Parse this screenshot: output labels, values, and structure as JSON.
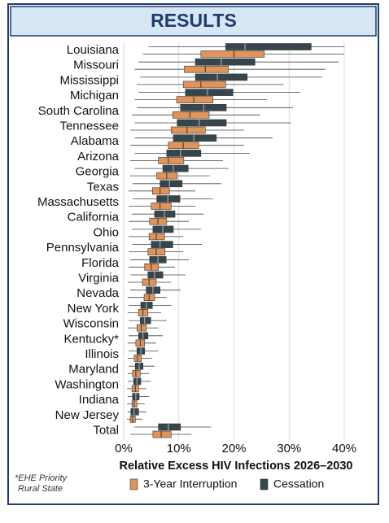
{
  "chart_data": {
    "type": "boxplot",
    "title": "RESULTS",
    "xlabel": "Relative Excess HIV Infections 2026–2030",
    "footnote": [
      "*EHE Priority",
      "Rural State"
    ],
    "categories": [
      "Louisiana",
      "Missouri",
      "Mississippi",
      "Michigan",
      "South Carolina",
      "Tennessee",
      "Alabama",
      "Arizona",
      "Georgia",
      "Texas",
      "Massachusetts",
      "California",
      "Ohio",
      "Pennsylvania",
      "Florida",
      "Virginia",
      "Nevada",
      "New York",
      "Wisconsin",
      "Kentucky*",
      "Illinois",
      "Maryland",
      "Washington",
      "Indiana",
      "New Jersey",
      "Total"
    ],
    "series": [
      {
        "name": "3-Year Interruption",
        "color": "#e0945a",
        "values": [
          [
            3.5,
            14,
            20,
            25.5,
            40
          ],
          [
            2,
            11,
            14.8,
            19,
            36.6
          ],
          [
            2.4,
            10.8,
            14,
            18.5,
            29
          ],
          [
            2,
            9.6,
            12.7,
            16.2,
            26
          ],
          [
            1.5,
            8.9,
            12,
            15.5,
            24.8
          ],
          [
            1.2,
            8.6,
            11.5,
            14.8,
            21.8
          ],
          [
            1.2,
            8.1,
            10.8,
            13.6,
            21.8
          ],
          [
            1.2,
            6.3,
            8.1,
            10.9,
            18
          ],
          [
            1.2,
            6,
            7.8,
            9.7,
            15.6
          ],
          [
            0.9,
            5.2,
            6.6,
            8.3,
            13
          ],
          [
            0.9,
            5,
            6.6,
            8.6,
            13
          ],
          [
            0.9,
            4.7,
            6.2,
            7.8,
            11.8
          ],
          [
            0.9,
            4.6,
            5.9,
            7.4,
            10.8
          ],
          [
            0.9,
            4.4,
            5.9,
            7.5,
            10.8
          ],
          [
            0.9,
            3.8,
            5,
            6.3,
            9.3
          ],
          [
            0.7,
            3.4,
            4.6,
            5.9,
            8.6
          ],
          [
            0.7,
            3.7,
            4.6,
            5.6,
            7.8
          ],
          [
            0.7,
            2.7,
            3.5,
            4.4,
            6.8
          ],
          [
            0.7,
            2.4,
            3.2,
            4.1,
            6.3
          ],
          [
            0.7,
            2.2,
            3,
            3.8,
            5.9
          ],
          [
            0.7,
            1.9,
            2.5,
            3.2,
            5.2
          ],
          [
            0.7,
            1.6,
            2.2,
            3,
            4.6
          ],
          [
            0.6,
            1.5,
            2.1,
            2.7,
            4.1
          ],
          [
            0.6,
            1.5,
            1.9,
            2.4,
            3.8
          ],
          [
            0.6,
            1.2,
            1.6,
            2.1,
            3.4
          ],
          [
            1.2,
            5.3,
            6.8,
            8.6,
            12.3
          ]
        ]
      },
      {
        "name": "Cessation",
        "color": "#37464d",
        "values": [
          [
            4.5,
            18.5,
            22,
            34,
            40
          ],
          [
            2.7,
            13,
            17.7,
            23.8,
            39
          ],
          [
            3,
            13,
            17,
            22.4,
            36
          ],
          [
            2.7,
            11.2,
            15.2,
            19.8,
            32
          ],
          [
            2.4,
            10.3,
            14.5,
            18.6,
            30.7
          ],
          [
            2,
            9.7,
            13.7,
            18.6,
            30.4
          ],
          [
            2,
            9,
            12.7,
            16.8,
            27
          ],
          [
            2,
            7.8,
            10.3,
            14,
            22.9
          ],
          [
            2,
            7.1,
            9,
            11.7,
            19
          ],
          [
            1.6,
            6.6,
            8.3,
            10.6,
            17.7
          ],
          [
            1.6,
            6,
            8,
            10.2,
            16.2
          ],
          [
            1.5,
            5.6,
            7.4,
            9.3,
            14.5
          ],
          [
            1.5,
            5.3,
            7.1,
            9,
            14
          ],
          [
            1.5,
            5,
            6.6,
            8.9,
            14.2
          ],
          [
            1.2,
            4.7,
            6.2,
            7.7,
            11.8
          ],
          [
            1.2,
            4.4,
            5.6,
            7.1,
            11.2
          ],
          [
            1.2,
            4.1,
            5.3,
            6.6,
            10.3
          ],
          [
            0.9,
            3.1,
            4.1,
            5.2,
            8.6
          ],
          [
            0.9,
            3,
            3.8,
            4.9,
            7.8
          ],
          [
            0.9,
            2.7,
            3.5,
            4.4,
            7.1
          ],
          [
            0.9,
            2.4,
            3.1,
            3.8,
            6.3
          ],
          [
            0.9,
            2.1,
            2.8,
            3.5,
            5.6
          ],
          [
            0.7,
            1.8,
            2.4,
            3.1,
            4.9
          ],
          [
            0.7,
            1.6,
            2.2,
            2.8,
            4.6
          ],
          [
            0.7,
            1.3,
            1.9,
            2.7,
            4.1
          ],
          [
            1.9,
            6.3,
            8.1,
            10.3,
            15.9
          ]
        ]
      }
    ],
    "xlim": [
      0,
      40
    ],
    "xticks": [
      {
        "value": 0,
        "label": "0%"
      },
      {
        "value": 10,
        "label": "10%"
      },
      {
        "value": 20,
        "label": "20%"
      },
      {
        "value": 30,
        "label": "30%"
      },
      {
        "value": 40,
        "label": "40%"
      }
    ],
    "grid": true
  }
}
